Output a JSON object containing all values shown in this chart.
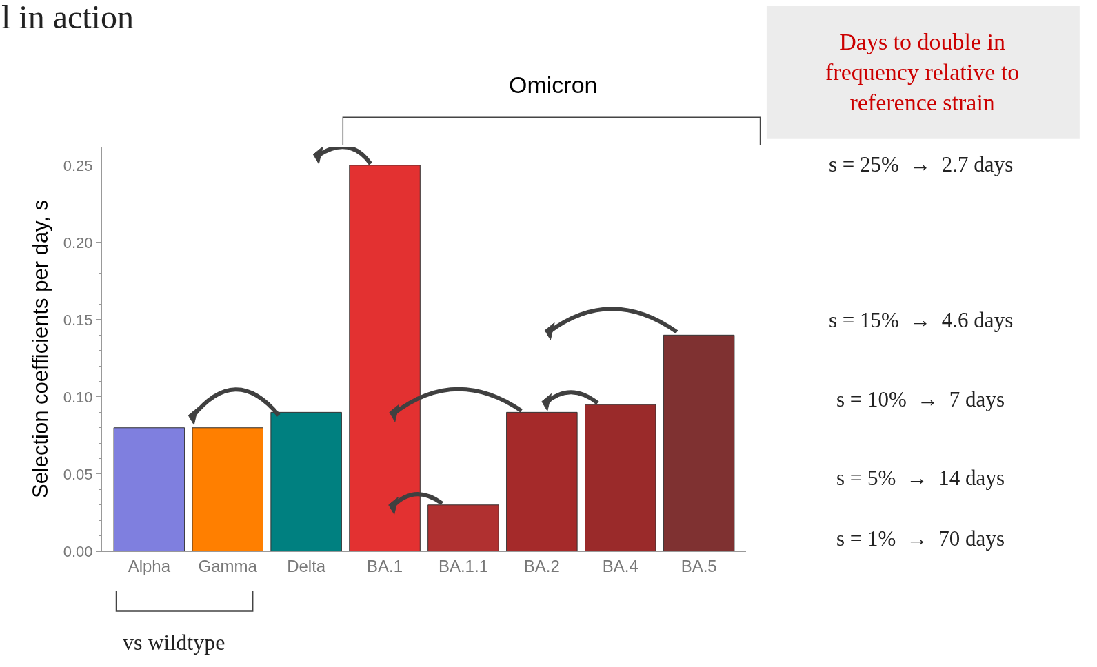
{
  "chart_data": {
    "type": "bar",
    "title": "l in action",
    "ylabel": "Selection coefficients per day, s",
    "categories": [
      "Alpha",
      "Gamma",
      "Delta",
      "BA.1",
      "BA.1.1",
      "BA.2",
      "BA.4",
      "BA.5"
    ],
    "values": [
      0.08,
      0.08,
      0.09,
      0.25,
      0.03,
      0.09,
      0.095,
      0.14
    ],
    "colors": [
      "#7f7fdf",
      "#ff7f00",
      "#008080",
      "#e33131",
      "#b03030",
      "#a52a2a",
      "#9a2a2a",
      "#7f3131"
    ],
    "ylim": [
      0,
      0.262
    ],
    "yticks": [
      {
        "value": 0,
        "label": "0.00"
      },
      {
        "value": 0.05,
        "label": "0.05"
      },
      {
        "value": 0.1,
        "label": "0.10"
      },
      {
        "value": 0.15,
        "label": "0.15"
      },
      {
        "value": 0.2,
        "label": "0.20"
      },
      {
        "value": 0.25,
        "label": "0.25"
      }
    ],
    "annotations": [
      "Omicron",
      "vs wildtype",
      "Days to double in\nfrequency relative to\nreference strain",
      "s = 25%  →  2.7 days",
      "s = 15%  →  4.6 days",
      "s = 10%  →  7 days",
      "s = 5%  →  14 days",
      "s = 1%  →  70 days"
    ]
  }
}
